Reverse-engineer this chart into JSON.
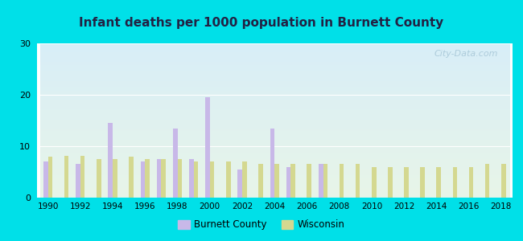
{
  "title": "Infant deaths per 1000 population in Burnett County",
  "years": [
    1990,
    1991,
    1992,
    1993,
    1994,
    1995,
    1996,
    1997,
    1998,
    1999,
    2000,
    2001,
    2002,
    2003,
    2004,
    2005,
    2006,
    2007,
    2008,
    2009,
    2010,
    2011,
    2012,
    2013,
    2014,
    2015,
    2016,
    2017,
    2018
  ],
  "burnett": [
    7,
    0,
    6.5,
    0,
    14.5,
    0,
    7,
    7.5,
    13.5,
    7.5,
    19.5,
    0,
    5.5,
    0,
    13.5,
    6,
    0,
    6.5,
    0,
    0,
    0,
    0,
    0,
    0,
    0,
    0,
    0,
    0,
    0
  ],
  "wisconsin": [
    8,
    8.2,
    8.2,
    7.5,
    7.5,
    8,
    7.5,
    7.5,
    7.5,
    7,
    7,
    7,
    7,
    6.5,
    6.5,
    6.5,
    6.5,
    6.5,
    6.5,
    6.5,
    6,
    6,
    6,
    6,
    6,
    6,
    6,
    6.5,
    6.5
  ],
  "burnett_color": "#c8b8e8",
  "wisconsin_color": "#d4d890",
  "ylim": [
    0,
    30
  ],
  "yticks": [
    0,
    10,
    20,
    30
  ],
  "xtick_years": [
    1990,
    1992,
    1994,
    1996,
    1998,
    2000,
    2002,
    2004,
    2006,
    2008,
    2010,
    2012,
    2014,
    2016,
    2018
  ],
  "bg_top": "#d8eef8",
  "bg_bottom": "#e8f5e8",
  "outer_bg": "#00e0e8",
  "watermark": "City-Data.com",
  "legend_burnett": "Burnett County",
  "legend_wisconsin": "Wisconsin",
  "title_color": "#222244"
}
